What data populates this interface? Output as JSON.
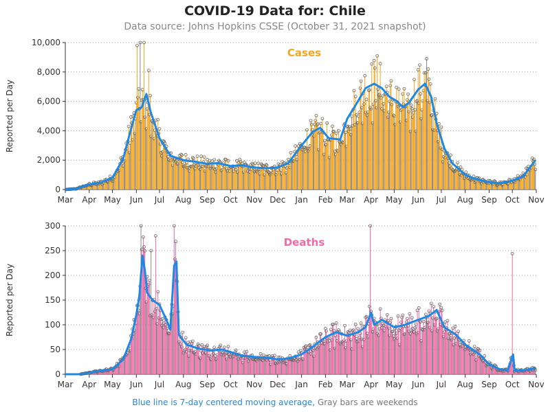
{
  "title": "COVID-19 Data for: Chile",
  "subtitle": "Data source: Johns Hopkins CSSE (October 31, 2021 snapshot)",
  "footnote": {
    "blue": "Blue line is 7-day centered moving average,",
    "gray": "Gray bars are weekends"
  },
  "colors": {
    "cases": "#f5a51d",
    "deaths": "#f06aa8",
    "avg": "#1e88e5",
    "weekend": "#888888"
  },
  "chart_data": [
    {
      "type": "bar",
      "title": "Cases",
      "ylabel": "Reported per Day",
      "ylim": [
        0,
        10000
      ],
      "yticks": [
        0,
        2000,
        4000,
        6000,
        8000,
        10000
      ],
      "ytick_labels": [
        "0",
        "2,000",
        "4,000",
        "6,000",
        "8,000",
        "10,000"
      ],
      "xtick_labels": [
        "Mar",
        "Apr",
        "May",
        "Jun",
        "Jul",
        "Aug",
        "Sep",
        "Oct",
        "Nov",
        "Dec",
        "Jan",
        "Feb",
        "Mar",
        "Apr",
        "May",
        "Jun",
        "Jul",
        "Aug",
        "Sep",
        "Oct",
        "Nov"
      ],
      "grid": true,
      "avg_keypoints": [
        [
          "2020-03-01",
          0
        ],
        [
          "2020-03-15",
          50
        ],
        [
          "2020-04-01",
          350
        ],
        [
          "2020-04-15",
          450
        ],
        [
          "2020-05-01",
          800
        ],
        [
          "2020-05-15",
          2100
        ],
        [
          "2020-05-25",
          4100
        ],
        [
          "2020-06-01",
          5400
        ],
        [
          "2020-06-08",
          5600
        ],
        [
          "2020-06-14",
          6500
        ],
        [
          "2020-06-20",
          5200
        ],
        [
          "2020-07-01",
          3500
        ],
        [
          "2020-07-15",
          2300
        ],
        [
          "2020-08-01",
          2000
        ],
        [
          "2020-08-15",
          1900
        ],
        [
          "2020-09-01",
          1750
        ],
        [
          "2020-09-15",
          1800
        ],
        [
          "2020-10-01",
          1600
        ],
        [
          "2020-10-15",
          1650
        ],
        [
          "2020-11-01",
          1500
        ],
        [
          "2020-11-15",
          1450
        ],
        [
          "2020-12-01",
          1500
        ],
        [
          "2020-12-15",
          1800
        ],
        [
          "2021-01-01",
          3000
        ],
        [
          "2021-01-15",
          3900
        ],
        [
          "2021-01-25",
          4200
        ],
        [
          "2021-02-05",
          3500
        ],
        [
          "2021-02-20",
          3400
        ],
        [
          "2021-03-01",
          4800
        ],
        [
          "2021-03-15",
          6000
        ],
        [
          "2021-03-25",
          6900
        ],
        [
          "2021-04-05",
          7200
        ],
        [
          "2021-04-15",
          6900
        ],
        [
          "2021-04-25",
          6300
        ],
        [
          "2021-05-05",
          6000
        ],
        [
          "2021-05-12",
          5600
        ],
        [
          "2021-05-20",
          5900
        ],
        [
          "2021-06-01",
          6800
        ],
        [
          "2021-06-10",
          7200
        ],
        [
          "2021-06-18",
          6300
        ],
        [
          "2021-06-25",
          4500
        ],
        [
          "2021-07-05",
          2800
        ],
        [
          "2021-07-15",
          1800
        ],
        [
          "2021-08-01",
          1000
        ],
        [
          "2021-08-15",
          700
        ],
        [
          "2021-09-01",
          500
        ],
        [
          "2021-09-15",
          420
        ],
        [
          "2021-10-01",
          600
        ],
        [
          "2021-10-15",
          900
        ],
        [
          "2021-10-31",
          2000
        ]
      ],
      "spikes": [
        [
          "2020-06-02",
          9800
        ],
        [
          "2020-06-06",
          10000
        ],
        [
          "2020-06-11",
          10000
        ],
        [
          "2020-06-17",
          8100
        ],
        [
          "2021-04-09",
          9100
        ],
        [
          "2021-06-12",
          8900
        ]
      ]
    },
    {
      "type": "bar",
      "title": "Deaths",
      "ylabel": "Reported per Day",
      "ylim": [
        0,
        300
      ],
      "yticks": [
        0,
        50,
        100,
        150,
        200,
        250,
        300
      ],
      "ytick_labels": [
        "0",
        "50",
        "100",
        "150",
        "200",
        "250",
        "300"
      ],
      "xtick_labels": [
        "Mar",
        "Apr",
        "May",
        "Jun",
        "Jul",
        "Aug",
        "Sep",
        "Oct",
        "Nov",
        "Dec",
        "Jan",
        "Feb",
        "Mar",
        "Apr",
        "May",
        "Jun",
        "Jul",
        "Aug",
        "Sep",
        "Oct",
        "Nov"
      ],
      "grid": true,
      "avg_keypoints": [
        [
          "2020-03-01",
          0
        ],
        [
          "2020-03-20",
          0
        ],
        [
          "2020-04-01",
          3
        ],
        [
          "2020-04-15",
          7
        ],
        [
          "2020-05-01",
          10
        ],
        [
          "2020-05-15",
          30
        ],
        [
          "2020-05-25",
          70
        ],
        [
          "2020-06-01",
          120
        ],
        [
          "2020-06-05",
          160
        ],
        [
          "2020-06-09",
          240
        ],
        [
          "2020-06-12",
          210
        ],
        [
          "2020-06-15",
          165
        ],
        [
          "2020-06-22",
          150
        ],
        [
          "2020-07-01",
          140
        ],
        [
          "2020-07-10",
          110
        ],
        [
          "2020-07-15",
          90
        ],
        [
          "2020-07-20",
          220
        ],
        [
          "2020-07-23",
          228
        ],
        [
          "2020-07-26",
          80
        ],
        [
          "2020-08-05",
          60
        ],
        [
          "2020-08-20",
          52
        ],
        [
          "2020-09-05",
          48
        ],
        [
          "2020-09-20",
          50
        ],
        [
          "2020-10-01",
          45
        ],
        [
          "2020-10-15",
          38
        ],
        [
          "2020-11-01",
          35
        ],
        [
          "2020-11-20",
          33
        ],
        [
          "2020-12-01",
          30
        ],
        [
          "2020-12-15",
          32
        ],
        [
          "2021-01-01",
          40
        ],
        [
          "2021-01-15",
          55
        ],
        [
          "2021-02-01",
          75
        ],
        [
          "2021-02-15",
          85
        ],
        [
          "2021-03-01",
          78
        ],
        [
          "2021-03-15",
          85
        ],
        [
          "2021-03-25",
          95
        ],
        [
          "2021-04-01",
          125
        ],
        [
          "2021-04-05",
          100
        ],
        [
          "2021-04-15",
          110
        ],
        [
          "2021-05-01",
          95
        ],
        [
          "2021-05-15",
          100
        ],
        [
          "2021-06-01",
          110
        ],
        [
          "2021-06-15",
          118
        ],
        [
          "2021-06-25",
          130
        ],
        [
          "2021-07-05",
          95
        ],
        [
          "2021-07-20",
          80
        ],
        [
          "2021-08-01",
          60
        ],
        [
          "2021-08-20",
          40
        ],
        [
          "2021-09-01",
          20
        ],
        [
          "2021-09-15",
          10
        ],
        [
          "2021-09-25",
          8
        ],
        [
          "2021-10-02",
          40
        ],
        [
          "2021-10-04",
          8
        ],
        [
          "2021-10-15",
          8
        ],
        [
          "2021-10-31",
          12
        ]
      ],
      "spikes": [
        [
          "2020-06-07",
          300
        ],
        [
          "2020-07-20",
          300
        ],
        [
          "2021-03-31",
          300
        ],
        [
          "2021-10-01",
          244
        ],
        [
          "2020-06-20",
          250
        ],
        [
          "2020-06-26",
          280
        ]
      ]
    }
  ]
}
